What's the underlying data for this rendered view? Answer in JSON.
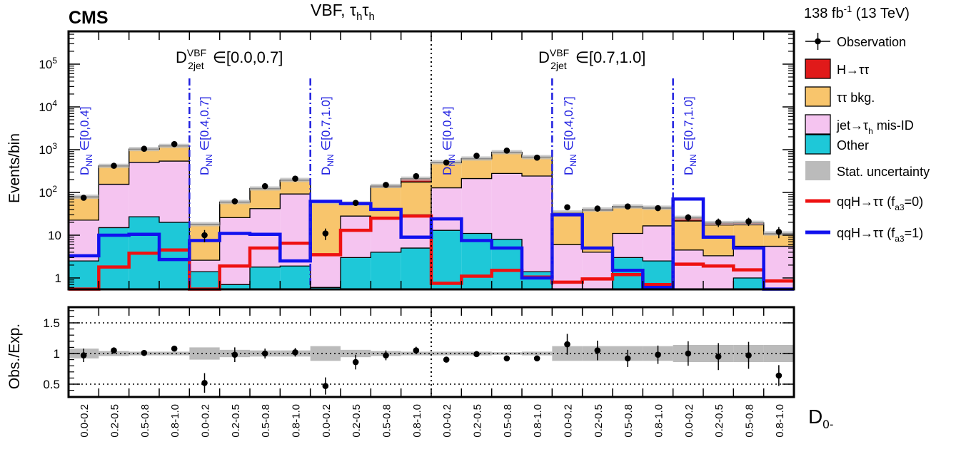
{
  "header": {
    "experiment": "CMS",
    "channel": "VBF, τhτh",
    "lumi": "138 fb-1 (13 TeV)"
  },
  "chart_data": {
    "type": "bar",
    "x_tick_labels": [
      "0.0-0.2",
      "0.2-0.5",
      "0.5-0.8",
      "0.8-1.0",
      "0.0-0.2",
      "0.2-0.5",
      "0.5-0.8",
      "0.8-1.0",
      "0.0-0.2",
      "0.2-0.5",
      "0.5-0.8",
      "0.8-1.0",
      "0.0-0.2",
      "0.2-0.5",
      "0.5-0.8",
      "0.8-1.0",
      "0.0-0.2",
      "0.2-0.5",
      "0.5-0.8",
      "0.8-1.0",
      "0.0-0.2",
      "0.2-0.5",
      "0.5-0.8",
      "0.8-1.0"
    ],
    "xlabel": "D0-",
    "top_panel": {
      "ylabel": "Events/bin",
      "yscale": "log",
      "ylim": [
        0.55,
        600000
      ],
      "y_tick_labels": [
        "1",
        "10",
        "10^2",
        "10^3",
        "10^4",
        "10^5"
      ],
      "stack": [
        {
          "name": "Other",
          "color": "#1ec8d8",
          "values": [
            2.5,
            15,
            27,
            20,
            1.4,
            0.7,
            1.8,
            1.9,
            0.6,
            3,
            4,
            5,
            13,
            11,
            8,
            1.4,
            0.5,
            0.5,
            3,
            2.5,
            0.5,
            0.5,
            1,
            0.5
          ]
        },
        {
          "name": "jet→τh mis-ID",
          "color": "#f5c4f0",
          "values": [
            20,
            140,
            480,
            520,
            1.2,
            25,
            40,
            90,
            3,
            25,
            20,
            25,
            115,
            200,
            270,
            240,
            5.5,
            3.5,
            8,
            14,
            4,
            2.8,
            4.5,
            5
          ]
        },
        {
          "name": "ττ bkg.",
          "color": "#f8c56c",
          "values": [
            55,
            260,
            520,
            680,
            15,
            33,
            80,
            100,
            55,
            25,
            110,
            145,
            370,
            400,
            580,
            420,
            26,
            34,
            34,
            26,
            17,
            14,
            12,
            5
          ]
        },
        {
          "name": "H→ττ",
          "color": "#e01a1a",
          "values": [
            2,
            3,
            5,
            5,
            0.5,
            1,
            2,
            4,
            1.5,
            2,
            8,
            35,
            10,
            10,
            15,
            8,
            2,
            2,
            2,
            1.5,
            4,
            2,
            2,
            0.5
          ]
        }
      ],
      "stat_band_color": "#bbbbbb",
      "observation": {
        "name": "Observation",
        "values": [
          75,
          420,
          1050,
          1350,
          10,
          62,
          140,
          210,
          11,
          57,
          150,
          240,
          500,
          720,
          950,
          650,
          45,
          42,
          47,
          43,
          26,
          20,
          21,
          12
        ],
        "errors_low": [
          9,
          20,
          32,
          36,
          3.2,
          8,
          12,
          14,
          3.3,
          7.5,
          12,
          15,
          22,
          27,
          31,
          25,
          6.7,
          6.5,
          6.9,
          6.6,
          5.1,
          4.5,
          4.6,
          3.5
        ],
        "errors_high": [
          9,
          20,
          32,
          36,
          3.2,
          8,
          12,
          14,
          3.3,
          7.5,
          12,
          15,
          22,
          27,
          31,
          25,
          6.7,
          6.5,
          6.9,
          6.6,
          5.1,
          4.5,
          4.6,
          3.5
        ]
      },
      "signal_lines": [
        {
          "name": "qqH→ττ (fa3=0)",
          "color": "#ee1111",
          "values": [
            0.55,
            1.8,
            3.8,
            4.5,
            0.55,
            1.9,
            5,
            6.5,
            3.5,
            13,
            25,
            28,
            0.75,
            1.1,
            1.5,
            1.05,
            0.8,
            0.95,
            1.2,
            0.7,
            2.1,
            1.9,
            1.55,
            0.85
          ]
        },
        {
          "name": "qqH→ττ (fa3=1)",
          "color": "#1111ee",
          "values": [
            3.3,
            10,
            10.5,
            2.7,
            7.5,
            11,
            10.5,
            2.5,
            62,
            55,
            40,
            9,
            24,
            7.5,
            5,
            1,
            30,
            5,
            1.5,
            0.6,
            70,
            9,
            5,
            0.55
          ]
        }
      ],
      "legend": {
        "placement": "right",
        "entries": [
          "Observation",
          "H→ττ",
          "ττ bkg.",
          "jet→τh mis-ID",
          "Other",
          "Stat. uncertainty",
          "qqH→ττ (fa3=0)",
          "qqH→ττ (fa3=1)"
        ]
      },
      "region_labels": [
        "D2jet VBF ∈[0.0,0.7]",
        "D2jet VBF ∈[0.7,1.0]"
      ],
      "subregion_labels": [
        "DNN ∈[0,0.4]",
        "DNN ∈[0.4,0.7]",
        "DNN ∈[0.7,1.0]",
        "DNN ∈[0,0.4]",
        "DNN ∈[0.4,0.7]",
        "DNN ∈[0.7,1.0]"
      ]
    },
    "bottom_panel": {
      "ylabel": "Obs./Exp.",
      "ylim": [
        0.27,
        1.8
      ],
      "y_ticks": [
        0.5,
        1,
        1.5
      ],
      "y_tick_labels": [
        "0.5",
        "1",
        "1.5"
      ],
      "ratio": [
        0.97,
        1.05,
        1.01,
        1.08,
        0.52,
        0.98,
        1.0,
        1.02,
        0.47,
        0.86,
        0.97,
        1.05,
        0.9,
        0.99,
        0.92,
        0.92,
        1.15,
        1.05,
        0.92,
        0.98,
        1.0,
        0.95,
        0.97,
        0.64
      ],
      "ratio_err": [
        0.11,
        0.05,
        0.03,
        0.03,
        0.16,
        0.12,
        0.08,
        0.07,
        0.14,
        0.12,
        0.08,
        0.06,
        0.04,
        0.04,
        0.03,
        0.04,
        0.17,
        0.16,
        0.14,
        0.15,
        0.2,
        0.22,
        0.22,
        0.17
      ],
      "band_err": [
        0.08,
        0.04,
        0.03,
        0.03,
        0.1,
        0.06,
        0.05,
        0.05,
        0.12,
        0.06,
        0.04,
        0.03,
        0.03,
        0.03,
        0.02,
        0.03,
        0.12,
        0.12,
        0.12,
        0.12,
        0.14,
        0.14,
        0.14,
        0.14
      ]
    }
  }
}
